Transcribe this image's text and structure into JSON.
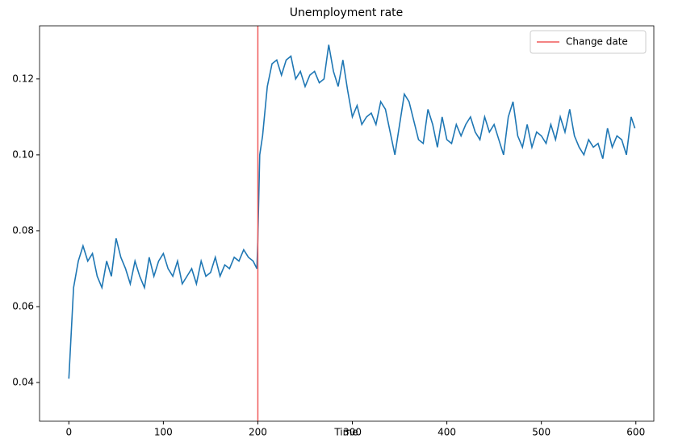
{
  "chart_data": {
    "type": "line",
    "title": "Unemployment rate",
    "xlabel": "Time",
    "x": [
      0,
      5,
      10,
      15,
      20,
      25,
      30,
      35,
      40,
      45,
      50,
      55,
      60,
      65,
      70,
      75,
      80,
      85,
      90,
      95,
      100,
      105,
      110,
      115,
      120,
      125,
      130,
      135,
      140,
      145,
      150,
      155,
      160,
      165,
      170,
      175,
      180,
      185,
      190,
      195,
      199,
      200,
      202,
      205,
      210,
      215,
      220,
      225,
      230,
      235,
      240,
      245,
      250,
      255,
      260,
      265,
      270,
      275,
      280,
      285,
      290,
      295,
      300,
      305,
      310,
      315,
      320,
      325,
      330,
      335,
      340,
      345,
      350,
      355,
      360,
      365,
      370,
      375,
      380,
      385,
      390,
      395,
      400,
      405,
      410,
      415,
      420,
      425,
      430,
      435,
      440,
      445,
      450,
      455,
      460,
      465,
      470,
      475,
      480,
      485,
      490,
      495,
      500,
      505,
      510,
      515,
      520,
      525,
      530,
      535,
      540,
      545,
      550,
      555,
      560,
      565,
      570,
      575,
      580,
      585,
      590,
      595,
      599
    ],
    "series": [
      {
        "name": "Unemployment rate",
        "color": "#1f77b4",
        "values": [
          0.041,
          0.065,
          0.072,
          0.076,
          0.072,
          0.074,
          0.068,
          0.065,
          0.072,
          0.068,
          0.078,
          0.073,
          0.07,
          0.066,
          0.072,
          0.068,
          0.065,
          0.073,
          0.068,
          0.072,
          0.074,
          0.07,
          0.068,
          0.072,
          0.066,
          0.068,
          0.07,
          0.066,
          0.072,
          0.068,
          0.069,
          0.073,
          0.068,
          0.071,
          0.07,
          0.073,
          0.072,
          0.075,
          0.073,
          0.072,
          0.07,
          0.078,
          0.1,
          0.105,
          0.118,
          0.124,
          0.125,
          0.121,
          0.125,
          0.126,
          0.12,
          0.122,
          0.118,
          0.121,
          0.122,
          0.119,
          0.12,
          0.129,
          0.122,
          0.118,
          0.125,
          0.117,
          0.11,
          0.113,
          0.108,
          0.11,
          0.111,
          0.108,
          0.114,
          0.112,
          0.106,
          0.1,
          0.108,
          0.116,
          0.114,
          0.109,
          0.104,
          0.103,
          0.112,
          0.108,
          0.102,
          0.11,
          0.104,
          0.103,
          0.108,
          0.105,
          0.108,
          0.11,
          0.106,
          0.104,
          0.11,
          0.106,
          0.108,
          0.104,
          0.1,
          0.11,
          0.114,
          0.105,
          0.102,
          0.108,
          0.102,
          0.106,
          0.105,
          0.103,
          0.108,
          0.104,
          0.11,
          0.106,
          0.112,
          0.105,
          0.102,
          0.1,
          0.104,
          0.102,
          0.103,
          0.099,
          0.107,
          0.102,
          0.105,
          0.104,
          0.1,
          0.11,
          0.107
        ]
      }
    ],
    "vline": {
      "name": "Change date",
      "x": 200,
      "color": "#f05a5a"
    },
    "xlim": [
      -31,
      619
    ],
    "ylim": [
      0.0298,
      0.134
    ],
    "xticks": [
      0,
      100,
      200,
      300,
      400,
      500,
      600
    ],
    "yticks": [
      0.04,
      0.06,
      0.08,
      {
        "value": 0.1,
        "label": "0.10"
      },
      0.12
    ],
    "legend": "upper right"
  }
}
